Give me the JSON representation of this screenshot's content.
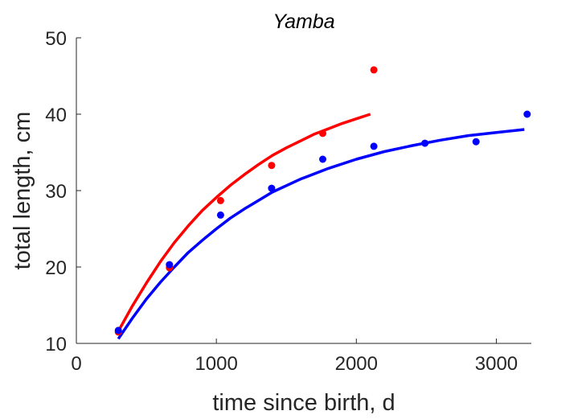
{
  "chart_data": {
    "type": "scatter",
    "title": "Yamba",
    "xlabel": "time since birth, d",
    "ylabel": "total length, cm",
    "xlim": [
      0,
      3250
    ],
    "ylim": [
      10,
      50
    ],
    "xticks": [
      0,
      1000,
      2000,
      3000
    ],
    "yticks": [
      10,
      20,
      30,
      40,
      50
    ],
    "xtick_labels": [
      "0",
      "1000",
      "2000",
      "3000"
    ],
    "ytick_labels": [
      "10",
      "20",
      "30",
      "40",
      "50"
    ],
    "grid": false,
    "series": [
      {
        "color": "#ff0000",
        "points": {
          "x": [
            300,
            665,
            1030,
            1395,
            1760,
            2125
          ],
          "y": [
            11.5,
            19.9,
            28.7,
            33.3,
            37.5,
            45.8
          ]
        },
        "curve": {
          "x": [
            300,
            400,
            500,
            600,
            700,
            800,
            900,
            1000,
            1100,
            1200,
            1300,
            1400,
            1500,
            1600,
            1700,
            1800,
            1900,
            2000,
            2100
          ],
          "y": [
            11.6,
            14.9,
            17.9,
            20.7,
            23.2,
            25.4,
            27.4,
            29.1,
            30.7,
            32.1,
            33.4,
            34.6,
            35.6,
            36.5,
            37.4,
            38.1,
            38.8,
            39.4,
            40.0
          ]
        }
      },
      {
        "color": "#0000ff",
        "points": {
          "x": [
            300,
            665,
            1030,
            1395,
            1760,
            2125,
            2490,
            2855,
            3220
          ],
          "y": [
            11.7,
            20.3,
            26.8,
            30.3,
            34.1,
            35.8,
            36.2,
            36.4,
            40.0
          ]
        },
        "curve": {
          "x": [
            300,
            400,
            500,
            600,
            700,
            800,
            900,
            1000,
            1100,
            1200,
            1300,
            1400,
            1600,
            1800,
            2000,
            2200,
            2400,
            2600,
            2800,
            3000,
            3200
          ],
          "y": [
            10.6,
            13.3,
            15.8,
            18.0,
            20.0,
            21.9,
            23.5,
            25.0,
            26.4,
            27.6,
            28.7,
            29.8,
            31.5,
            32.9,
            34.1,
            35.1,
            35.9,
            36.6,
            37.2,
            37.6,
            38.0
          ]
        }
      }
    ]
  }
}
